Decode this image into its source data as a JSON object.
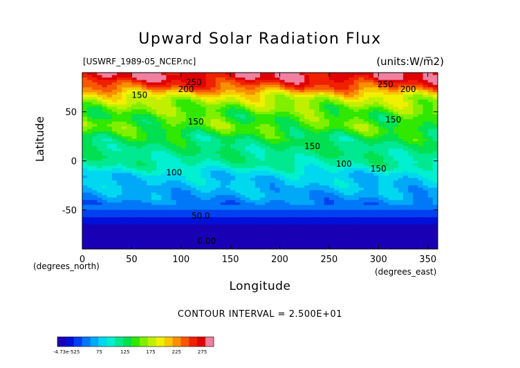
{
  "chart_data": {
    "type": "heatmap",
    "title": "Upward Solar Radiation Flux",
    "subtitle_left": "[USWRF_1989-05_NCEP.nc]",
    "subtitle_right": "(units:W/m^2)",
    "xlabel": "Longitude",
    "ylabel": "Latitude",
    "x_unit_label": "(degrees_east)",
    "y_unit_label": "(degrees_north)",
    "xlim": [
      0,
      360
    ],
    "ylim": [
      -90,
      90
    ],
    "x_ticks": [
      0,
      50,
      100,
      150,
      200,
      250,
      300,
      350
    ],
    "y_ticks": [
      -50,
      0,
      50
    ],
    "contour_interval_text": "CONTOUR INTERVAL = 2.500E+01",
    "contour_labels": [
      {
        "text": "250",
        "lon": 113,
        "lat": 80
      },
      {
        "text": "200",
        "lon": 105,
        "lat": 73
      },
      {
        "text": "150",
        "lon": 58,
        "lat": 67
      },
      {
        "text": "150",
        "lon": 115,
        "lat": 40
      },
      {
        "text": "150",
        "lon": 233,
        "lat": 15
      },
      {
        "text": "100",
        "lon": 93,
        "lat": -12
      },
      {
        "text": "100",
        "lon": 265,
        "lat": -3
      },
      {
        "text": "150",
        "lon": 300,
        "lat": -8
      },
      {
        "text": "150",
        "lon": 315,
        "lat": 42
      },
      {
        "text": "250",
        "lon": 307,
        "lat": 78
      },
      {
        "text": "200",
        "lon": 330,
        "lat": 73
      },
      {
        "text": "50.0",
        "lon": 120,
        "lat": -56
      },
      {
        "text": "0.00",
        "lon": 126,
        "lat": -82
      }
    ],
    "latitude_profile": [
      {
        "lat": 85,
        "value": 280
      },
      {
        "lat": 75,
        "value": 245
      },
      {
        "lat": 65,
        "value": 190
      },
      {
        "lat": 55,
        "value": 165
      },
      {
        "lat": 45,
        "value": 150
      },
      {
        "lat": 35,
        "value": 155
      },
      {
        "lat": 25,
        "value": 135
      },
      {
        "lat": 15,
        "value": 125
      },
      {
        "lat": 5,
        "value": 120
      },
      {
        "lat": -5,
        "value": 110
      },
      {
        "lat": -15,
        "value": 85
      },
      {
        "lat": -25,
        "value": 80
      },
      {
        "lat": -35,
        "value": 70
      },
      {
        "lat": -45,
        "value": 55
      },
      {
        "lat": -55,
        "value": 35
      },
      {
        "lat": -65,
        "value": 15
      },
      {
        "lat": -75,
        "value": 5
      },
      {
        "lat": -85,
        "value": 0
      }
    ],
    "colorbar": {
      "tick_labels": [
        "-4.73e-525",
        "75",
        "125",
        "175",
        "225",
        "275"
      ],
      "colors": [
        "#1a00b4",
        "#0010d8",
        "#0040f0",
        "#0078f8",
        "#00a8f8",
        "#00d8f0",
        "#00f0d0",
        "#00e890",
        "#00e050",
        "#30e800",
        "#80f000",
        "#c0f000",
        "#f0f000",
        "#f8c800",
        "#f89000",
        "#f85800",
        "#f02000",
        "#e00000",
        "#f080a0"
      ]
    }
  }
}
